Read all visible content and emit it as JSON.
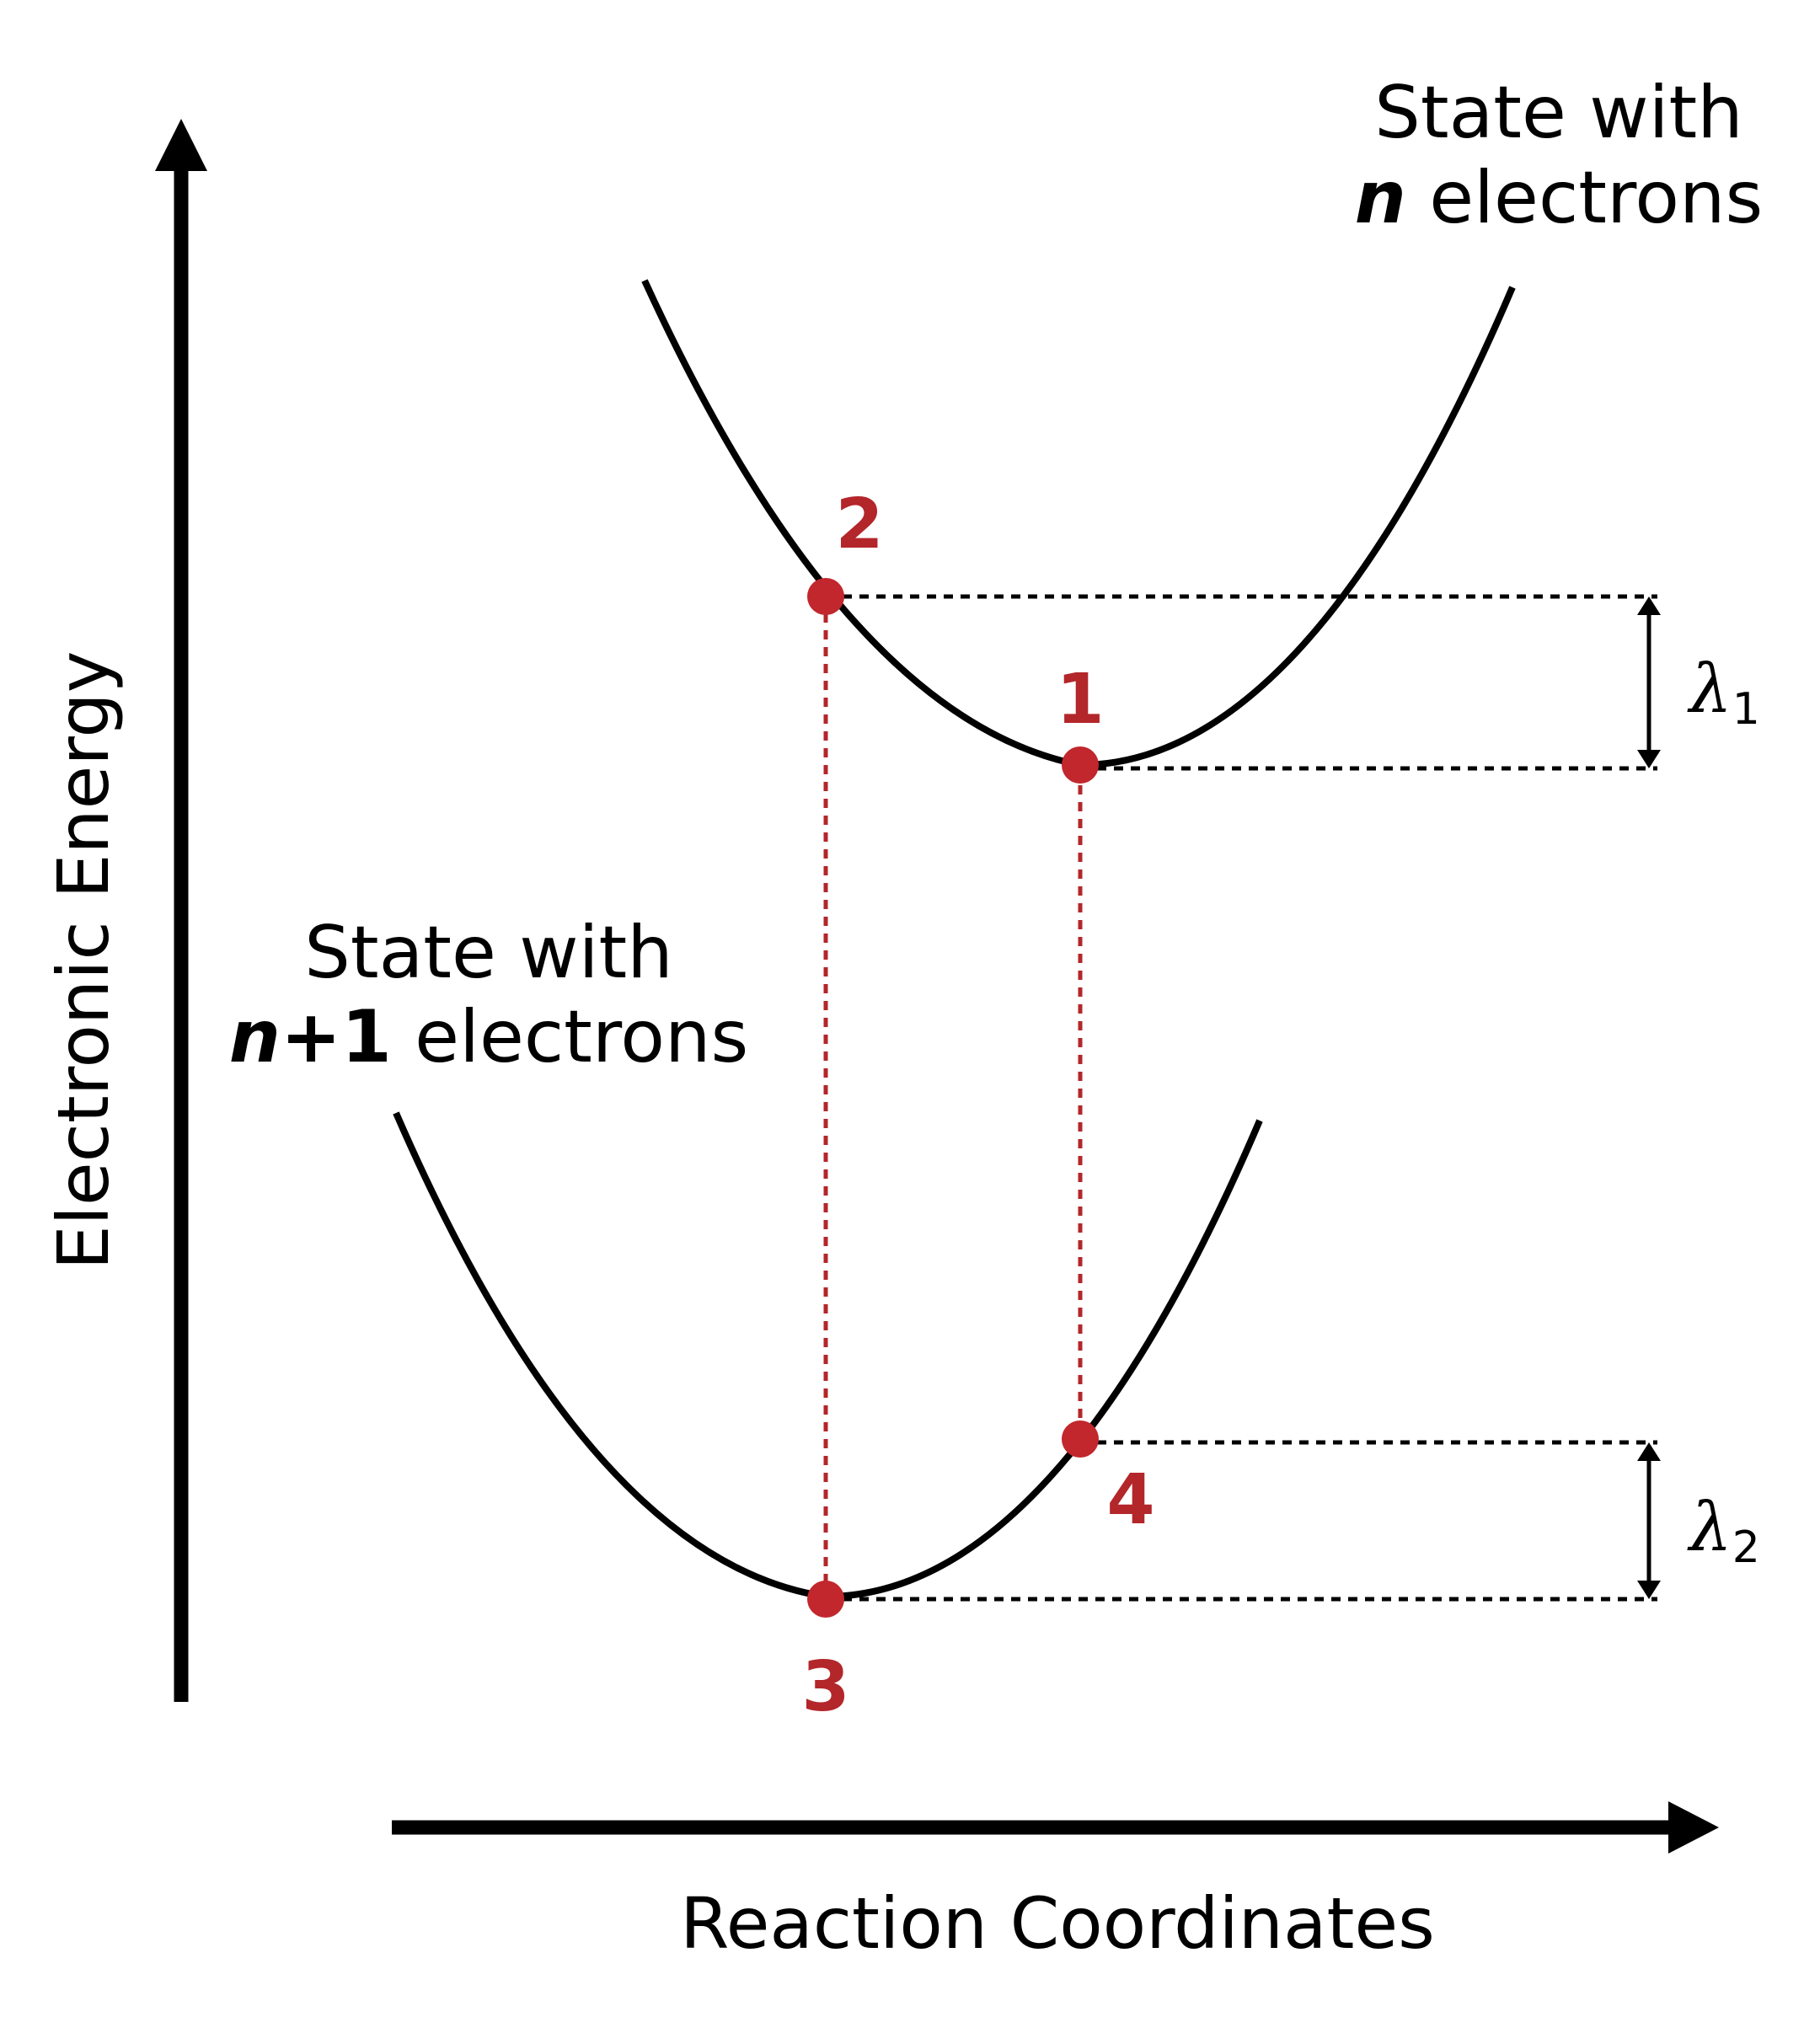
{
  "axes": {
    "y_label": "Electronic Energy",
    "x_label": "Reaction Coordinates"
  },
  "states": {
    "upper": {
      "line1": "State with",
      "line2_var": "n",
      "line2_rest": " electrons"
    },
    "lower": {
      "line1": "State with",
      "line2_var": "n",
      "line2_plus": "+1",
      "line2_rest": " electrons"
    }
  },
  "points": [
    {
      "id": "1",
      "label": "1"
    },
    {
      "id": "2",
      "label": "2"
    },
    {
      "id": "3",
      "label": "3"
    },
    {
      "id": "4",
      "label": "4"
    }
  ],
  "reorganization": {
    "lambda1": {
      "symbol": "λ",
      "sub": "1"
    },
    "lambda2": {
      "symbol": "λ",
      "sub": "2"
    }
  },
  "colors": {
    "curve": "#000000",
    "point": "#c1272d",
    "point_label": "#b3262a"
  }
}
